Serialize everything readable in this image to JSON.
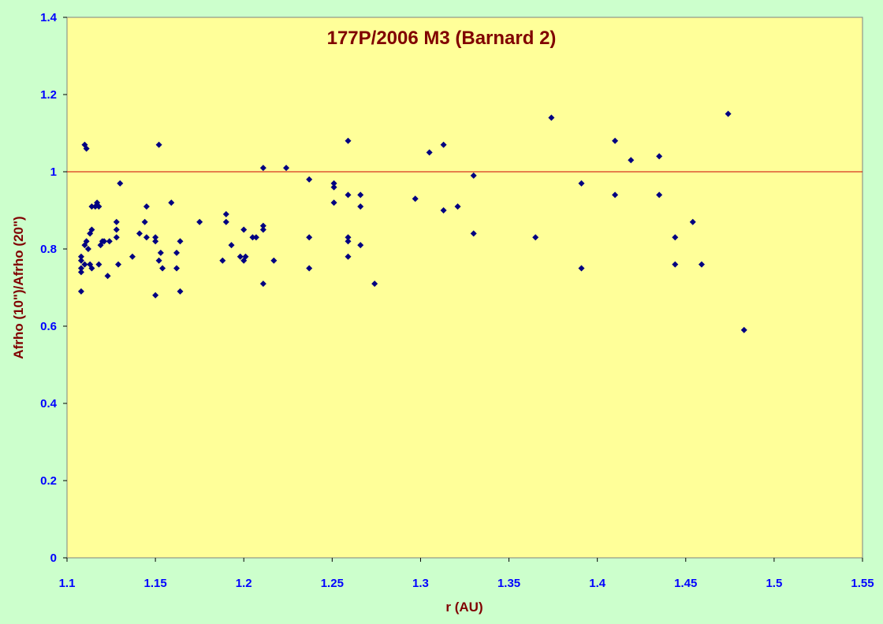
{
  "chart_data": {
    "type": "scatter",
    "title": "177P/2006 M3 (Barnard 2)",
    "xlabel": "r (AU)",
    "ylabel": "Afrho (10\")/Afrho (20\")",
    "xlim": [
      1.1,
      1.55
    ],
    "ylim": [
      0,
      1.4
    ],
    "x_ticks": [
      "1.1",
      "1.15",
      "1.2",
      "1.25",
      "1.3",
      "1.35",
      "1.4",
      "1.45",
      "1.5",
      "1.55"
    ],
    "y_ticks": [
      "0",
      "0.2",
      "0.4",
      "0.6",
      "0.8",
      "1",
      "1.2",
      "1.4"
    ],
    "grid": false,
    "reference_line": {
      "y": 1.0,
      "color": "#cc0000"
    },
    "colors": {
      "plot_background": "#ffff99",
      "page_background": "#ccffcc",
      "marker": "#000080",
      "tick_labels": "#0000ff",
      "titles": "#800000"
    },
    "series": [
      {
        "marker": "diamond",
        "points": [
          [
            1.108,
            0.69
          ],
          [
            1.108,
            0.74
          ],
          [
            1.108,
            0.75
          ],
          [
            1.108,
            0.77
          ],
          [
            1.108,
            0.78
          ],
          [
            1.11,
            1.07
          ],
          [
            1.111,
            1.06
          ],
          [
            1.11,
            0.76
          ],
          [
            1.11,
            0.81
          ],
          [
            1.111,
            0.82
          ],
          [
            1.112,
            0.8
          ],
          [
            1.113,
            0.76
          ],
          [
            1.114,
            0.75
          ],
          [
            1.113,
            0.84
          ],
          [
            1.114,
            0.85
          ],
          [
            1.114,
            0.91
          ],
          [
            1.116,
            0.91
          ],
          [
            1.117,
            0.92
          ],
          [
            1.118,
            0.91
          ],
          [
            1.118,
            0.76
          ],
          [
            1.119,
            0.81
          ],
          [
            1.12,
            0.82
          ],
          [
            1.121,
            0.82
          ],
          [
            1.123,
            0.73
          ],
          [
            1.124,
            0.82
          ],
          [
            1.128,
            0.87
          ],
          [
            1.128,
            0.83
          ],
          [
            1.128,
            0.85
          ],
          [
            1.129,
            0.76
          ],
          [
            1.13,
            0.97
          ],
          [
            1.137,
            0.78
          ],
          [
            1.141,
            0.84
          ],
          [
            1.144,
            0.87
          ],
          [
            1.145,
            0.91
          ],
          [
            1.145,
            0.83
          ],
          [
            1.15,
            0.82
          ],
          [
            1.15,
            0.83
          ],
          [
            1.15,
            0.68
          ],
          [
            1.152,
            0.77
          ],
          [
            1.152,
            1.07
          ],
          [
            1.153,
            0.79
          ],
          [
            1.154,
            0.75
          ],
          [
            1.159,
            0.92
          ],
          [
            1.162,
            0.79
          ],
          [
            1.162,
            0.75
          ],
          [
            1.164,
            0.69
          ],
          [
            1.164,
            0.82
          ],
          [
            1.175,
            0.87
          ],
          [
            1.188,
            0.77
          ],
          [
            1.19,
            0.89
          ],
          [
            1.19,
            0.87
          ],
          [
            1.193,
            0.81
          ],
          [
            1.198,
            0.78
          ],
          [
            1.2,
            0.77
          ],
          [
            1.2,
            0.85
          ],
          [
            1.201,
            0.78
          ],
          [
            1.205,
            0.83
          ],
          [
            1.207,
            0.83
          ],
          [
            1.211,
            1.01
          ],
          [
            1.211,
            0.85
          ],
          [
            1.211,
            0.86
          ],
          [
            1.211,
            0.71
          ],
          [
            1.217,
            0.77
          ],
          [
            1.224,
            1.01
          ],
          [
            1.237,
            0.98
          ],
          [
            1.237,
            0.83
          ],
          [
            1.237,
            0.75
          ],
          [
            1.251,
            0.97
          ],
          [
            1.251,
            0.96
          ],
          [
            1.251,
            0.92
          ],
          [
            1.259,
            1.08
          ],
          [
            1.259,
            0.94
          ],
          [
            1.259,
            0.83
          ],
          [
            1.259,
            0.82
          ],
          [
            1.259,
            0.78
          ],
          [
            1.266,
            0.94
          ],
          [
            1.266,
            0.91
          ],
          [
            1.266,
            0.81
          ],
          [
            1.274,
            0.71
          ],
          [
            1.297,
            0.93
          ],
          [
            1.305,
            1.05
          ],
          [
            1.313,
            1.07
          ],
          [
            1.313,
            0.9
          ],
          [
            1.321,
            0.91
          ],
          [
            1.33,
            0.99
          ],
          [
            1.33,
            0.84
          ],
          [
            1.365,
            0.83
          ],
          [
            1.374,
            1.14
          ],
          [
            1.391,
            0.97
          ],
          [
            1.391,
            0.75
          ],
          [
            1.41,
            1.08
          ],
          [
            1.41,
            0.94
          ],
          [
            1.419,
            1.03
          ],
          [
            1.435,
            1.04
          ],
          [
            1.435,
            0.94
          ],
          [
            1.444,
            0.83
          ],
          [
            1.444,
            0.76
          ],
          [
            1.454,
            0.87
          ],
          [
            1.459,
            0.76
          ],
          [
            1.474,
            1.15
          ],
          [
            1.483,
            0.59
          ]
        ]
      }
    ]
  }
}
